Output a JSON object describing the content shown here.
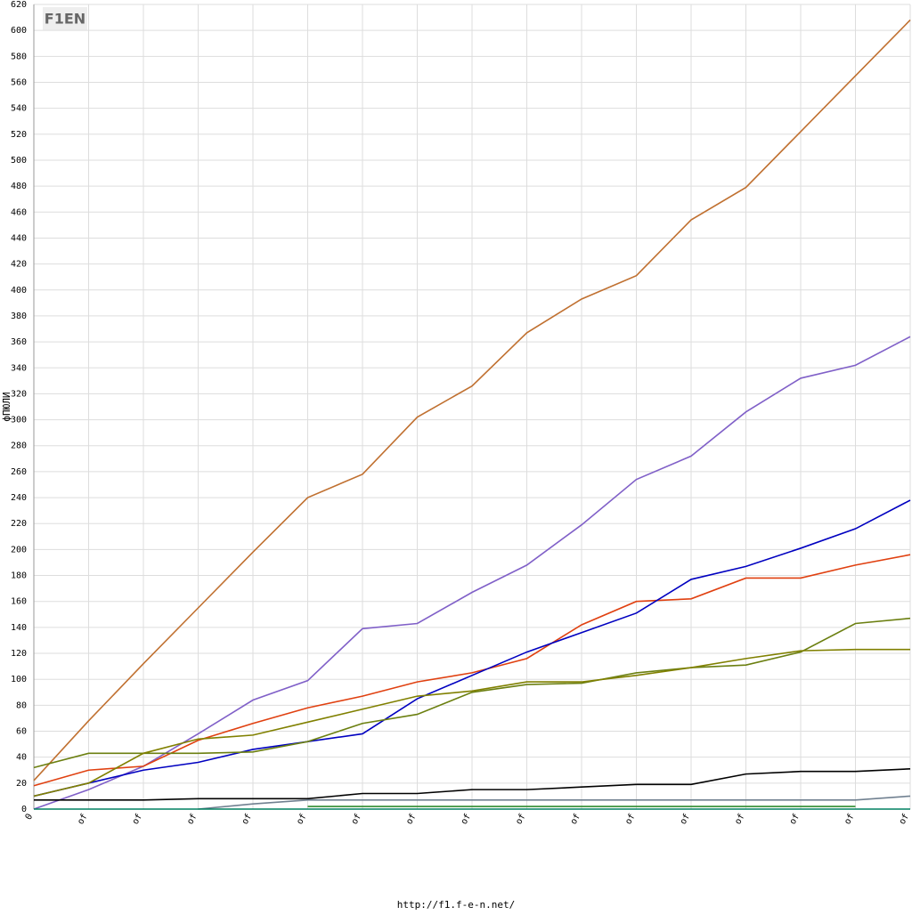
{
  "chart_data": {
    "type": "line",
    "logo": "F1EN",
    "ylabel": "фПЮЛИ",
    "footer": "http://f1.f-e-n.net/",
    "categories": [
      "0",
      "of",
      "of",
      "of",
      "of",
      "of",
      "of",
      "of",
      "of",
      "of",
      "of",
      "of",
      "of",
      "of",
      "of",
      "of",
      "of"
    ],
    "ylim": [
      0,
      620
    ],
    "yticks": [
      0,
      20,
      40,
      60,
      80,
      100,
      120,
      140,
      160,
      180,
      200,
      220,
      240,
      260,
      280,
      300,
      320,
      340,
      360,
      380,
      400,
      420,
      440,
      460,
      480,
      500,
      520,
      540,
      560,
      580,
      600,
      620
    ],
    "grid": true,
    "series": [
      {
        "color": "#c07030",
        "values": [
          22,
          68,
          112,
          155,
          198,
          240,
          258,
          302,
          326,
          367,
          393,
          411,
          454,
          479,
          522,
          565,
          608
        ]
      },
      {
        "color": "#8060c8",
        "values": [
          0,
          15,
          33,
          58,
          84,
          99,
          139,
          143,
          167,
          188,
          219,
          254,
          272,
          306,
          332,
          342,
          364
        ]
      },
      {
        "color": "#e04010",
        "values": [
          18,
          30,
          33,
          53,
          66,
          78,
          87,
          98,
          105,
          116,
          142,
          160,
          162,
          178,
          178,
          188,
          196
        ]
      },
      {
        "color": "#0000c0",
        "values": [
          10,
          20,
          30,
          36,
          46,
          52,
          58,
          85,
          103,
          121,
          136,
          151,
          177,
          187,
          201,
          216,
          238
        ]
      },
      {
        "color": "#6b7f10",
        "values": [
          32,
          43,
          43,
          43,
          44,
          52,
          66,
          73,
          90,
          96,
          97,
          105,
          109,
          111,
          121,
          143,
          147
        ]
      },
      {
        "color": "#808000",
        "values": [
          10,
          20,
          43,
          54,
          57,
          67,
          77,
          87,
          91,
          98,
          98,
          103,
          109,
          116,
          122,
          123,
          123
        ]
      },
      {
        "color": "#000000",
        "values": [
          7,
          7,
          7,
          8,
          8,
          8,
          12,
          12,
          15,
          15,
          17,
          19,
          19,
          27,
          29,
          29,
          31
        ]
      },
      {
        "color": "#708090",
        "values": [
          null,
          null,
          null,
          0,
          4,
          7,
          7,
          7,
          7,
          7,
          7,
          7,
          7,
          7,
          7,
          7,
          10
        ]
      },
      {
        "color": "#2e8b2e",
        "values": [
          null,
          null,
          null,
          null,
          null,
          2,
          2,
          2,
          2,
          2,
          2,
          2,
          2,
          2,
          2,
          2,
          null
        ]
      },
      {
        "color": "#008060",
        "values": [
          0,
          0,
          0,
          0,
          0,
          0,
          0,
          0,
          0,
          0,
          0,
          0,
          0,
          0,
          0,
          0,
          0
        ]
      }
    ]
  }
}
